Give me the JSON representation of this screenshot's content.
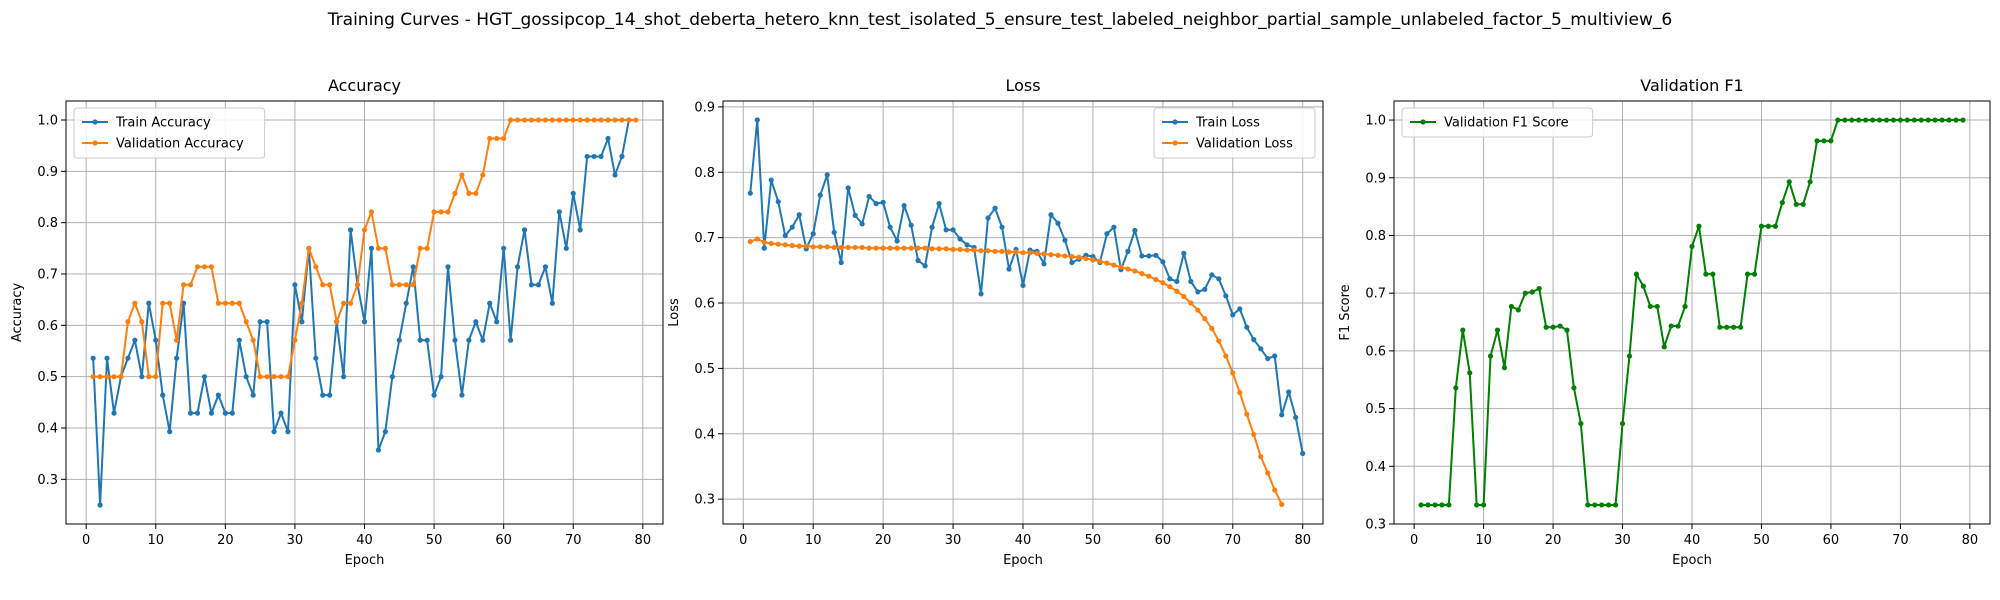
{
  "figure": {
    "suptitle": "Training Curves - HGT_gossipcop_14_shot_deberta_hetero_knn_test_isolated_5_ensure_test_labeled_neighbor_partial_sample_unlabeled_factor_5_multiview_6"
  },
  "colors": {
    "train": "#1f77b4",
    "validation": "#ff7f0e",
    "f1": "#008000",
    "grid": "#b0b0b0"
  },
  "chart_data": [
    {
      "type": "line",
      "title": "Accuracy",
      "xlabel": "Epoch",
      "ylabel": "Accuracy",
      "xlim": [
        -2.9,
        82.9
      ],
      "ylim": [
        0.213,
        1.037
      ],
      "xticks": [
        0,
        10,
        20,
        30,
        40,
        50,
        60,
        70,
        80
      ],
      "yticks": [
        0.3,
        0.4,
        0.5,
        0.6,
        0.7,
        0.8,
        0.9,
        1.0
      ],
      "grid": true,
      "legend_position": "upper-left",
      "series": [
        {
          "name": "Train Accuracy",
          "color": "#1f77b4",
          "values": [
            0.536,
            0.25,
            0.536,
            0.429,
            0.5,
            0.536,
            0.571,
            0.5,
            0.643,
            0.571,
            0.464,
            0.393,
            0.536,
            0.643,
            0.429,
            0.429,
            0.5,
            0.429,
            0.464,
            0.429,
            0.429,
            0.571,
            0.5,
            0.464,
            0.607,
            0.607,
            0.393,
            0.429,
            0.393,
            0.679,
            0.607,
            0.75,
            0.536,
            0.464,
            0.464,
            0.607,
            0.5,
            0.786,
            0.679,
            0.607,
            0.75,
            0.357,
            0.393,
            0.5,
            0.571,
            0.643,
            0.714,
            0.571,
            0.571,
            0.464,
            0.5,
            0.714,
            0.571,
            0.464,
            0.571,
            0.607,
            0.571,
            0.643,
            0.607,
            0.75,
            0.571,
            0.714,
            0.786,
            0.679,
            0.679,
            0.714,
            0.643,
            0.821,
            0.75,
            0.857,
            0.786,
            0.929,
            0.929,
            0.929,
            0.964,
            0.893,
            0.929,
            1.0
          ]
        },
        {
          "name": "Validation Accuracy",
          "color": "#ff7f0e",
          "values": [
            0.5,
            0.5,
            0.5,
            0.5,
            0.5,
            0.607,
            0.643,
            0.607,
            0.5,
            0.5,
            0.643,
            0.643,
            0.571,
            0.679,
            0.679,
            0.714,
            0.714,
            0.714,
            0.643,
            0.643,
            0.643,
            0.643,
            0.607,
            0.571,
            0.5,
            0.5,
            0.5,
            0.5,
            0.5,
            0.571,
            0.643,
            0.75,
            0.714,
            0.679,
            0.679,
            0.607,
            0.643,
            0.643,
            0.679,
            0.786,
            0.821,
            0.75,
            0.75,
            0.679,
            0.679,
            0.679,
            0.679,
            0.75,
            0.75,
            0.821,
            0.821,
            0.821,
            0.857,
            0.893,
            0.857,
            0.857,
            0.893,
            0.964,
            0.964,
            0.964,
            1.0,
            1.0,
            1.0,
            1.0,
            1.0,
            1.0,
            1.0,
            1.0,
            1.0,
            1.0,
            1.0,
            1.0,
            1.0,
            1.0,
            1.0,
            1.0,
            1.0,
            1.0,
            1.0
          ]
        }
      ]
    },
    {
      "type": "line",
      "title": "Loss",
      "xlabel": "Epoch",
      "ylabel": "Loss",
      "xlim": [
        -2.9,
        82.9
      ],
      "ylim": [
        0.262,
        0.909
      ],
      "xticks": [
        0,
        10,
        20,
        30,
        40,
        50,
        60,
        70,
        80
      ],
      "yticks": [
        0.3,
        0.4,
        0.5,
        0.6,
        0.7,
        0.8,
        0.9
      ],
      "grid": true,
      "legend_position": "upper-right",
      "series": [
        {
          "name": "Train Loss",
          "color": "#1f77b4",
          "values": [
            0.768,
            0.88,
            0.684,
            0.788,
            0.755,
            0.703,
            0.716,
            0.735,
            0.683,
            0.706,
            0.765,
            0.796,
            0.708,
            0.662,
            0.776,
            0.734,
            0.721,
            0.763,
            0.752,
            0.754,
            0.716,
            0.695,
            0.749,
            0.719,
            0.665,
            0.657,
            0.716,
            0.752,
            0.712,
            0.712,
            0.698,
            0.689,
            0.685,
            0.614,
            0.73,
            0.745,
            0.716,
            0.652,
            0.682,
            0.627,
            0.681,
            0.679,
            0.66,
            0.735,
            0.722,
            0.696,
            0.662,
            0.667,
            0.673,
            0.671,
            0.662,
            0.706,
            0.716,
            0.651,
            0.679,
            0.711,
            0.672,
            0.672,
            0.673,
            0.663,
            0.637,
            0.633,
            0.676,
            0.633,
            0.617,
            0.621,
            0.643,
            0.637,
            0.611,
            0.582,
            0.591,
            0.563,
            0.544,
            0.53,
            0.515,
            0.519,
            0.429,
            0.464,
            0.425,
            0.37
          ]
        },
        {
          "name": "Validation Loss",
          "color": "#ff7f0e",
          "values": [
            0.694,
            0.698,
            0.693,
            0.691,
            0.69,
            0.689,
            0.688,
            0.687,
            0.687,
            0.686,
            0.686,
            0.686,
            0.685,
            0.685,
            0.685,
            0.685,
            0.685,
            0.684,
            0.684,
            0.684,
            0.684,
            0.684,
            0.684,
            0.684,
            0.684,
            0.684,
            0.683,
            0.683,
            0.683,
            0.682,
            0.682,
            0.681,
            0.681,
            0.68,
            0.68,
            0.679,
            0.679,
            0.678,
            0.678,
            0.677,
            0.677,
            0.676,
            0.675,
            0.674,
            0.673,
            0.672,
            0.671,
            0.67,
            0.668,
            0.666,
            0.664,
            0.661,
            0.658,
            0.655,
            0.652,
            0.649,
            0.645,
            0.641,
            0.636,
            0.631,
            0.625,
            0.618,
            0.61,
            0.6,
            0.589,
            0.576,
            0.561,
            0.542,
            0.519,
            0.493,
            0.463,
            0.43,
            0.399,
            0.365,
            0.34,
            0.314,
            0.292
          ]
        }
      ]
    },
    {
      "type": "line",
      "title": "Validation F1",
      "xlabel": "Epoch",
      "ylabel": "F1 Score",
      "xlim": [
        -2.9,
        82.9
      ],
      "ylim": [
        0.3,
        1.033
      ],
      "xticks": [
        0,
        10,
        20,
        30,
        40,
        50,
        60,
        70,
        80
      ],
      "yticks": [
        0.3,
        0.4,
        0.5,
        0.6,
        0.7,
        0.8,
        0.9,
        1.0
      ],
      "grid": true,
      "legend_position": "upper-left",
      "series": [
        {
          "name": "Validation F1 Score",
          "color": "#008000",
          "values": [
            0.333,
            0.333,
            0.333,
            0.333,
            0.333,
            0.536,
            0.636,
            0.562,
            0.333,
            0.333,
            0.591,
            0.636,
            0.571,
            0.677,
            0.671,
            0.7,
            0.702,
            0.708,
            0.641,
            0.641,
            0.643,
            0.636,
            0.536,
            0.474,
            0.333,
            0.333,
            0.333,
            0.333,
            0.333,
            0.474,
            0.591,
            0.733,
            0.712,
            0.677,
            0.677,
            0.607,
            0.643,
            0.643,
            0.677,
            0.781,
            0.816,
            0.733,
            0.733,
            0.641,
            0.641,
            0.641,
            0.641,
            0.733,
            0.733,
            0.816,
            0.816,
            0.816,
            0.857,
            0.893,
            0.854,
            0.854,
            0.893,
            0.964,
            0.964,
            0.964,
            1.0,
            1.0,
            1.0,
            1.0,
            1.0,
            1.0,
            1.0,
            1.0,
            1.0,
            1.0,
            1.0,
            1.0,
            1.0,
            1.0,
            1.0,
            1.0,
            1.0,
            1.0,
            1.0
          ]
        }
      ]
    }
  ]
}
